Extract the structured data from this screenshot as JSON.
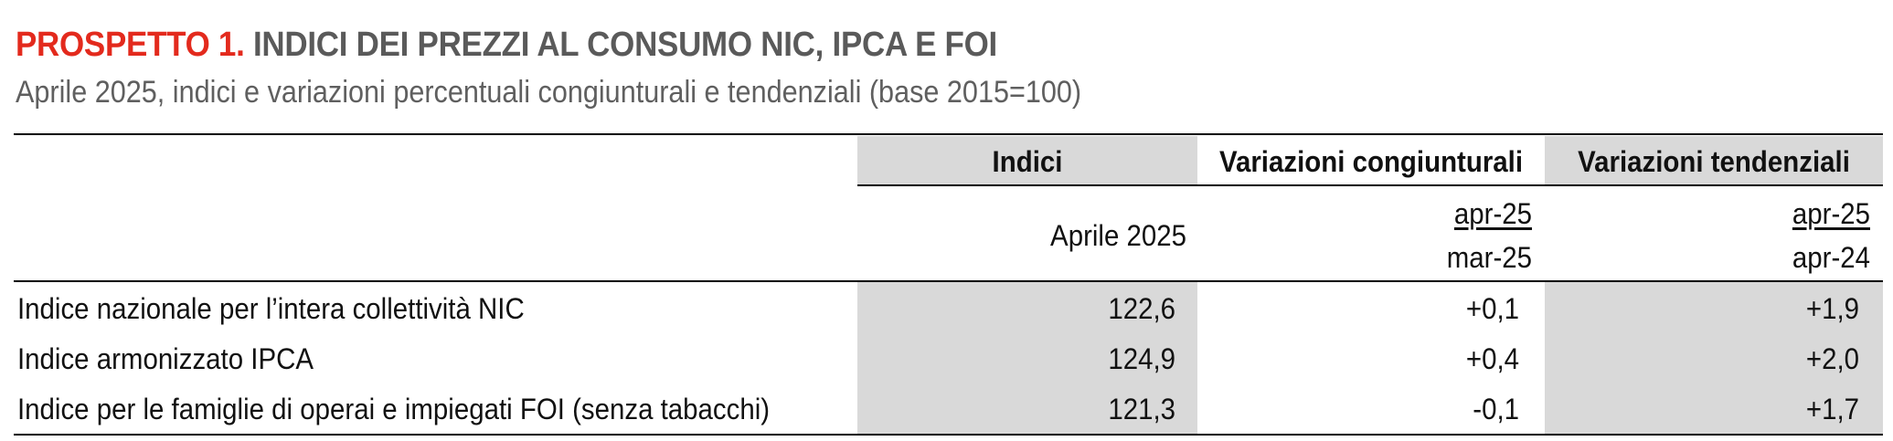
{
  "title": {
    "prefix": "PROSPETTO 1.",
    "main": "INDICI DEI PREZZI AL CONSUMO NIC, IPCA E FOI"
  },
  "subtitle": "Aprile 2025, indici e variazioni percentuali congiunturali e tendenziali (base 2015=100)",
  "header": {
    "col1": "Indici",
    "col2": "Variazioni congiunturali",
    "col3": "Variazioni tendenziali",
    "sub1": "Aprile 2025",
    "sub2_top": "apr-25",
    "sub2_bottom": "mar-25",
    "sub3_top": "apr-25",
    "sub3_bottom": "apr-24"
  },
  "rows": [
    {
      "label": "Indice nazionale per l’intera collettività NIC",
      "index": "122,6",
      "cong": "+0,1",
      "tend": "+1,9"
    },
    {
      "label": "Indice armonizzato IPCA",
      "index": "124,9",
      "cong": "+0,4",
      "tend": "+2,0"
    },
    {
      "label": "Indice per le famiglie di operai e impiegati FOI (senza tabacchi)",
      "index": "121,3",
      "cong": "-0,1",
      "tend": "+1,7"
    }
  ],
  "colors": {
    "accent": "#e32a1d",
    "title_gray": "#5a5a5a",
    "shade": "#d9d9d9"
  }
}
